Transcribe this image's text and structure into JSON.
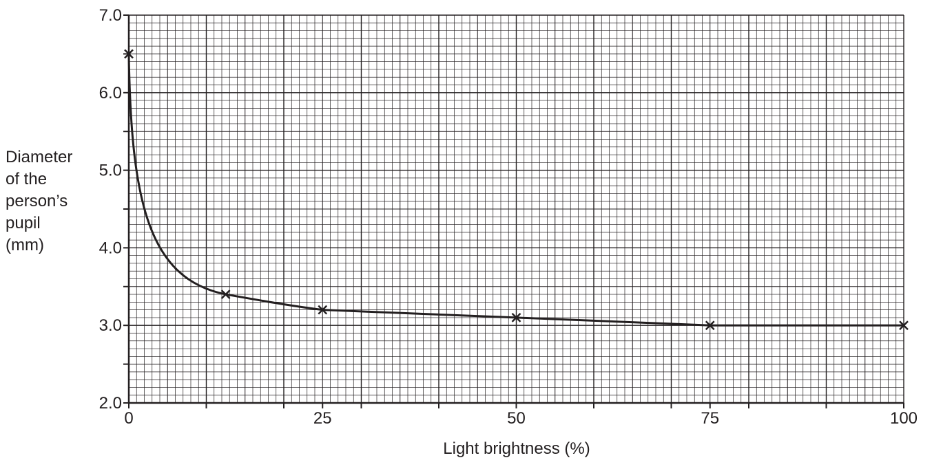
{
  "chart_data": {
    "type": "line",
    "xlabel": "Light brightness (%)",
    "ylabel_lines": [
      "Diameter",
      "of the",
      "person’s",
      "pupil",
      "(mm)"
    ],
    "xlim": [
      0,
      100
    ],
    "ylim": [
      2.0,
      7.0
    ],
    "x_ticks": [
      "0",
      "25",
      "50",
      "75",
      "100"
    ],
    "y_ticks": [
      "2.0",
      "3.0",
      "4.0",
      "5.0",
      "6.0",
      "7.0"
    ],
    "grid": true,
    "series": [
      {
        "marker": "x",
        "color": "#231f20",
        "points": [
          {
            "x": 0,
            "y": 6.5
          },
          {
            "x": 12.5,
            "y": 3.4
          },
          {
            "x": 25,
            "y": 3.2
          },
          {
            "x": 50,
            "y": 3.1
          },
          {
            "x": 75,
            "y": 3.0
          },
          {
            "x": 100,
            "y": 3.0
          }
        ]
      }
    ]
  }
}
